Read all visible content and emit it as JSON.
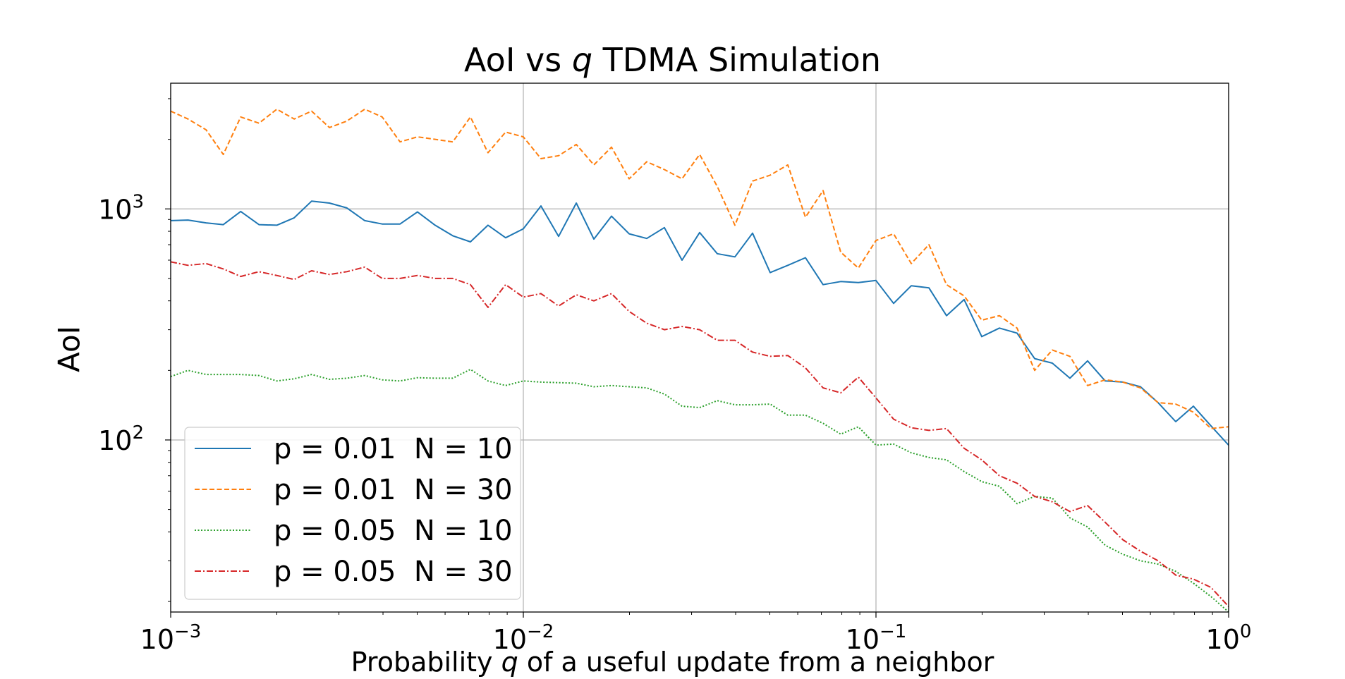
{
  "chart_data": {
    "type": "line",
    "title_prefix": "AoI vs ",
    "title_var": "q",
    "title_suffix": " TDMA Simulation",
    "xlabel_prefix": "Probability ",
    "xlabel_var": "q",
    "xlabel_suffix": " of a useful update from a neighbor",
    "ylabel": "AoI",
    "xscale": "log",
    "yscale": "log",
    "xlim": [
      0.001,
      1
    ],
    "ylim": [
      18,
      3500
    ],
    "grid": true,
    "legend_position": "lower-left",
    "x_ticks": [
      {
        "base": "10",
        "exp": "−3",
        "value": 0.001
      },
      {
        "base": "10",
        "exp": "−2",
        "value": 0.01
      },
      {
        "base": "10",
        "exp": "−1",
        "value": 0.1
      },
      {
        "base": "10",
        "exp": "0",
        "value": 1
      }
    ],
    "y_ticks": [
      {
        "base": "10",
        "exp": "2",
        "value": 100
      },
      {
        "base": "10",
        "exp": "3",
        "value": 1000
      }
    ],
    "x": [
      0.001,
      0.00112,
      0.00126,
      0.00141,
      0.00158,
      0.00178,
      0.002,
      0.00224,
      0.00251,
      0.00282,
      0.00316,
      0.00355,
      0.00398,
      0.00447,
      0.00501,
      0.00562,
      0.00631,
      0.00708,
      0.00794,
      0.00891,
      0.01,
      0.01122,
      0.01259,
      0.01413,
      0.01585,
      0.01778,
      0.01995,
      0.02239,
      0.02512,
      0.02818,
      0.03162,
      0.03548,
      0.03981,
      0.04467,
      0.05012,
      0.05623,
      0.0631,
      0.07079,
      0.07943,
      0.08913,
      0.1,
      0.1122,
      0.1259,
      0.1413,
      0.1585,
      0.1778,
      0.1995,
      0.2239,
      0.2512,
      0.2818,
      0.3162,
      0.3548,
      0.3981,
      0.4467,
      0.5012,
      0.5623,
      0.631,
      0.7079,
      0.7943,
      0.8913,
      1.0
    ],
    "series": [
      {
        "name": "p = 0.01  N = 10",
        "color": "#1f77b4",
        "dash": "solid",
        "values": [
          890,
          895,
          870,
          855,
          975,
          855,
          850,
          915,
          1080,
          1060,
          1010,
          890,
          860,
          860,
          970,
          850,
          765,
          720,
          850,
          750,
          820,
          1030,
          760,
          1060,
          740,
          930,
          780,
          745,
          830,
          600,
          790,
          640,
          620,
          785,
          530,
          570,
          615,
          470,
          485,
          480,
          490,
          390,
          465,
          455,
          345,
          405,
          280,
          305,
          290,
          225,
          215,
          185,
          220,
          180,
          178,
          170,
          145,
          120,
          140,
          115,
          95
        ]
      },
      {
        "name": "p = 0.01  N = 30",
        "color": "#ff7f0e",
        "dash": "dashed",
        "values": [
          2650,
          2450,
          2200,
          1720,
          2500,
          2350,
          2700,
          2450,
          2650,
          2250,
          2400,
          2700,
          2500,
          1950,
          2050,
          2000,
          1950,
          2500,
          1750,
          2150,
          2050,
          1650,
          1700,
          1900,
          1550,
          1850,
          1350,
          1600,
          1480,
          1350,
          1720,
          1250,
          850,
          1320,
          1400,
          1550,
          920,
          1200,
          650,
          555,
          730,
          780,
          580,
          700,
          470,
          420,
          330,
          345,
          305,
          200,
          245,
          230,
          172,
          182,
          178,
          168,
          145,
          143,
          132,
          112,
          114
        ]
      },
      {
        "name": "p = 0.05  N = 10",
        "color": "#2ca02c",
        "dash": "dotted",
        "values": [
          188,
          200,
          192,
          192,
          192,
          190,
          180,
          184,
          192,
          183,
          185,
          190,
          182,
          180,
          186,
          185,
          185,
          202,
          180,
          172,
          180,
          178,
          177,
          176,
          170,
          172,
          170,
          168,
          158,
          140,
          138,
          148,
          142,
          142,
          143,
          128,
          128,
          118,
          106,
          114,
          95,
          96,
          88,
          84,
          82,
          73,
          66,
          63,
          53,
          57,
          56,
          46,
          42,
          35,
          32,
          30,
          29,
          27,
          24,
          21,
          18
        ]
      },
      {
        "name": "p = 0.05  N = 30",
        "color": "#d62728",
        "dash": "dashdot",
        "values": [
          590,
          570,
          580,
          550,
          510,
          535,
          515,
          495,
          540,
          520,
          535,
          560,
          500,
          500,
          515,
          500,
          500,
          470,
          375,
          470,
          415,
          430,
          380,
          425,
          400,
          430,
          360,
          320,
          300,
          310,
          300,
          270,
          270,
          240,
          230,
          232,
          205,
          168,
          160,
          187,
          152,
          123,
          113,
          110,
          112,
          92,
          82,
          70,
          65,
          57,
          54,
          49,
          52,
          44,
          37,
          33,
          30,
          26,
          25,
          23,
          19
        ]
      }
    ]
  }
}
